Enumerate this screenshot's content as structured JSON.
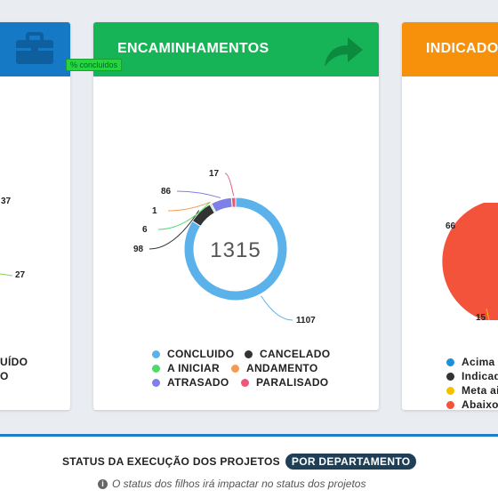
{
  "left_card": {
    "header_icon": "briefcase-icon",
    "labels": [
      "37",
      "27"
    ],
    "legend_fragments": [
      "UÍDO",
      "O"
    ],
    "colors": {
      "header": "#1579c6",
      "line": "#8fd14f"
    }
  },
  "tooltip": {
    "text": "% concluidos"
  },
  "center_card": {
    "title": "ENCAMINHAMENTOS",
    "header_icon": "share-arrow-icon",
    "total": "1315",
    "legend": [
      {
        "label": "CONCLUIDO",
        "color": "#5bb2ea"
      },
      {
        "label": "CANCELADO",
        "color": "#333333"
      },
      {
        "label": "A INICIAR",
        "color": "#4fd96a"
      },
      {
        "label": "ANDAMENTO",
        "color": "#f59a52"
      },
      {
        "label": "ATRASADO",
        "color": "#7f7fe8"
      },
      {
        "label": "PARALISADO",
        "color": "#f0567a"
      }
    ]
  },
  "chart_data": {
    "type": "pie",
    "title": "",
    "center_label": "1315",
    "categories": [
      "CONCLUIDO",
      "CANCELADO",
      "A INICIAR",
      "ANDAMENTO",
      "ATRASADO",
      "PARALISADO"
    ],
    "values": [
      1107,
      98,
      6,
      1,
      86,
      17
    ],
    "colors": [
      "#5bb2ea",
      "#333333",
      "#4fd96a",
      "#f59a52",
      "#7f7fe8",
      "#f0567a"
    ],
    "legend_position": "bottom"
  },
  "right_card": {
    "title": "INDICADORES",
    "labels": [
      "66",
      "15"
    ],
    "legend": [
      {
        "label": "Acima d",
        "color": "#1e90d6"
      },
      {
        "label": "Indicad",
        "color": "#333333"
      },
      {
        "label": "Meta ai",
        "color": "#f2c200"
      },
      {
        "label": "Abaixo",
        "color": "#f2533a"
      }
    ]
  },
  "bottom": {
    "title": "STATUS DA EXECUÇÃO DOS PROJETOS",
    "pill": "POR DEPARTAMENTO",
    "note": "O status dos filhos irá impactar no status dos projetos",
    "info_icon": "info-icon"
  }
}
